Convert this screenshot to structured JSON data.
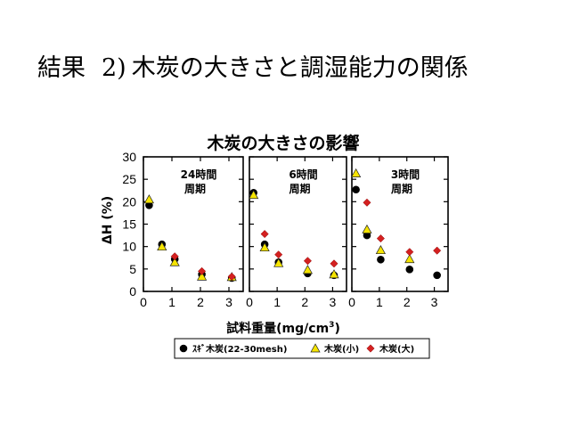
{
  "slide": {
    "title_pre": "結果",
    "title_num": "2)",
    "title_post": "木炭の大きさと調湿能力の関係"
  },
  "chart_data": {
    "type": "scatter",
    "title": "木炭の大きさの影響",
    "xlabel": "試料重量(mg/cm",
    "xlabel_sup": "3",
    "xlabel_close": ")",
    "ylabel": "ΔH (%)",
    "ylim": [
      0,
      30
    ],
    "xlim": [
      0,
      3.5
    ],
    "yticks": [
      0,
      5,
      10,
      15,
      20,
      25,
      30
    ],
    "xticks": [
      0,
      1,
      2,
      3
    ],
    "grid": false,
    "legend_position": "bottom",
    "series_style": [
      {
        "name": "ｽｷﾞ木炭(22-30mesh)",
        "marker": "circle",
        "color": "#000000"
      },
      {
        "name": "木炭(小)",
        "marker": "triangle",
        "color": "#f5e400"
      },
      {
        "name": "木炭(大)",
        "marker": "diamond",
        "color": "#d42020"
      }
    ],
    "panels": [
      {
        "label_line1": "24時間",
        "label_line2": "周期",
        "series": [
          {
            "name": "ｽｷﾞ木炭(22-30mesh)",
            "points": [
              [
                0.2,
                19.2
              ],
              [
                0.65,
                10.5
              ],
              [
                1.1,
                7.2
              ],
              [
                2.05,
                3.8
              ],
              [
                3.1,
                3.0
              ]
            ]
          },
          {
            "name": "木炭(小)",
            "points": [
              [
                0.2,
                20.5
              ],
              [
                0.65,
                10.0
              ],
              [
                1.1,
                6.5
              ],
              [
                2.05,
                3.3
              ],
              [
                3.1,
                3.2
              ]
            ]
          },
          {
            "name": "木炭(大)",
            "points": [
              [
                1.1,
                7.8
              ],
              [
                2.05,
                4.5
              ],
              [
                3.1,
                3.3
              ]
            ]
          }
        ]
      },
      {
        "label_line1": "6時間",
        "label_line2": "周期",
        "series": [
          {
            "name": "ｽｷﾞ木炭(22-30mesh)",
            "points": [
              [
                0.15,
                22.0
              ],
              [
                0.55,
                10.5
              ],
              [
                1.05,
                6.5
              ],
              [
                2.1,
                4.0
              ],
              [
                3.05,
                3.6
              ]
            ]
          },
          {
            "name": "木炭(小)",
            "points": [
              [
                0.15,
                21.5
              ],
              [
                0.55,
                9.8
              ],
              [
                1.05,
                6.3
              ],
              [
                2.1,
                4.8
              ],
              [
                3.05,
                3.8
              ]
            ]
          },
          {
            "name": "木炭(大)",
            "points": [
              [
                0.55,
                12.8
              ],
              [
                1.05,
                8.2
              ],
              [
                2.1,
                6.8
              ],
              [
                3.05,
                6.2
              ]
            ]
          }
        ]
      },
      {
        "label_line1": "3時間",
        "label_line2": "周期",
        "series": [
          {
            "name": "ｽｷﾞ木炭(22-30mesh)",
            "points": [
              [
                0.15,
                22.7
              ],
              [
                0.55,
                12.5
              ],
              [
                1.05,
                7.1
              ],
              [
                2.1,
                4.9
              ],
              [
                3.1,
                3.6
              ]
            ]
          },
          {
            "name": "木炭(小)",
            "points": [
              [
                0.15,
                26.3
              ],
              [
                0.55,
                13.8
              ],
              [
                1.05,
                9.2
              ],
              [
                2.1,
                7.2
              ]
            ]
          },
          {
            "name": "木炭(大)",
            "points": [
              [
                0.55,
                19.8
              ],
              [
                1.05,
                11.8
              ],
              [
                2.1,
                8.8
              ],
              [
                3.1,
                9.1
              ]
            ]
          }
        ]
      }
    ]
  }
}
